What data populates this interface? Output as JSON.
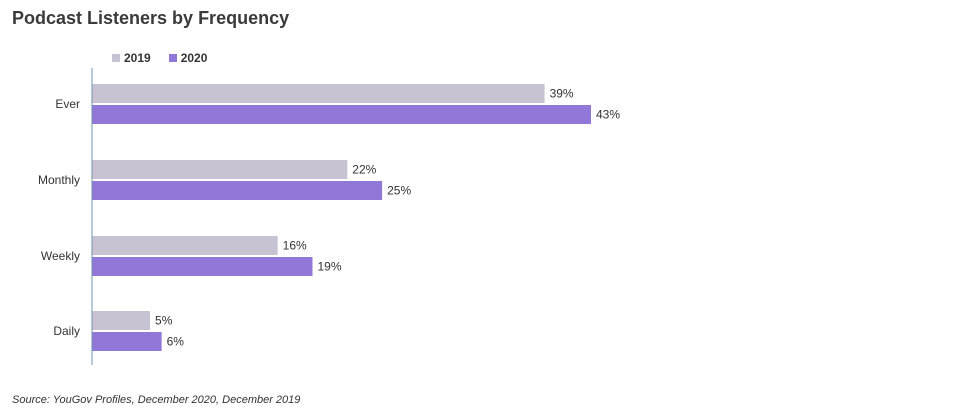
{
  "chart_data": {
    "type": "bar",
    "orientation": "horizontal",
    "title": "Podcast Listeners by Frequency",
    "categories": [
      "Ever",
      "Monthly",
      "Weekly",
      "Daily"
    ],
    "series": [
      {
        "name": "2019",
        "values": [
          39,
          22,
          16,
          5
        ],
        "labels": [
          "39%",
          "22%",
          "16%",
          "5%"
        ],
        "color": "#c8c3d3"
      },
      {
        "name": "2020",
        "values": [
          43,
          25,
          19,
          6
        ],
        "labels": [
          "43%",
          "25%",
          "19%",
          "6%"
        ],
        "color": "#9177d8"
      }
    ],
    "xlim": [
      0,
      43
    ],
    "legend_position": "top-left",
    "grid": false,
    "source": "Source: YouGov Profiles, December 2020, December 2019"
  }
}
